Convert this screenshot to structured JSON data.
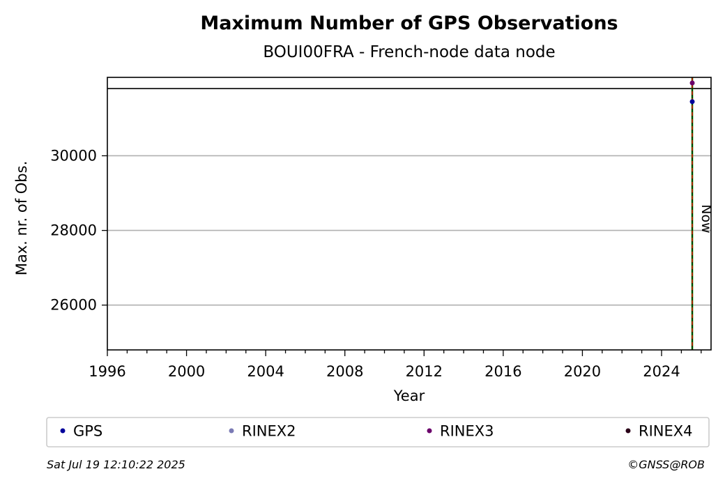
{
  "chart_data": {
    "type": "scatter",
    "title": "Maximum Number of GPS Observations",
    "subtitle": "BOUI00FRA - French-node data node",
    "xlabel": "Year",
    "ylabel": "Max. nr. of Obs.",
    "xlim": [
      1996,
      2026.5
    ],
    "ylim": [
      24800,
      32100
    ],
    "x_ticks": [
      1996,
      2000,
      2004,
      2008,
      2012,
      2016,
      2020,
      2024
    ],
    "x_tick_labels": [
      "1996",
      "2000",
      "2004",
      "2008",
      "2012",
      "2016",
      "2020",
      "2024"
    ],
    "y_ticks": [
      26000,
      28000,
      30000
    ],
    "y_tick_labels": [
      "26000",
      "28000",
      "30000"
    ],
    "grid": "horizontal",
    "reference_line_y": 31800,
    "now_line": {
      "x": 2025.55,
      "label": "Now"
    },
    "series": [
      {
        "name": "GPS",
        "color": "#00009b",
        "points": [
          {
            "x": 2025.55,
            "y": 31450
          }
        ]
      },
      {
        "name": "RINEX2",
        "color": "#7b7bb5",
        "points": []
      },
      {
        "name": "RINEX3",
        "color": "#6b006b",
        "points": [
          {
            "x": 2025.55,
            "y": 31950
          }
        ]
      },
      {
        "name": "RINEX4",
        "color": "#2a0018",
        "points": []
      }
    ],
    "legend_placement": "bottom"
  },
  "footer": {
    "timestamp": "Sat Jul 19 12:10:22 2025",
    "copyright": "©GNSS@ROB"
  }
}
